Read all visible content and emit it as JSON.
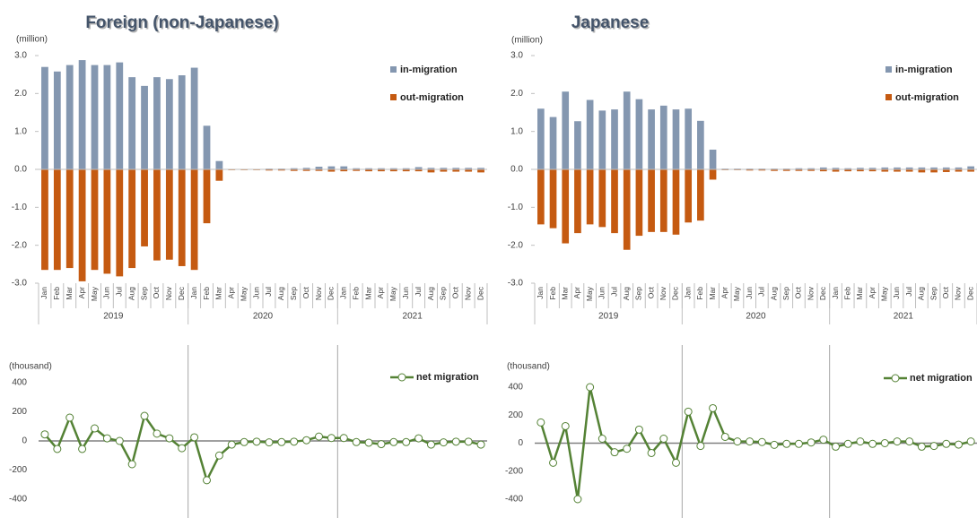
{
  "chart_data": [
    {
      "type": "bar",
      "title": "Foreign (non-Japanese)",
      "y_label": "(million)",
      "categories": [
        "Jan",
        "Feb",
        "Mar",
        "Apr",
        "May",
        "Jun",
        "Jul",
        "Aug",
        "Sep",
        "Oct",
        "Nov",
        "Dec",
        "Jan",
        "Feb",
        "Mar",
        "Apr",
        "May",
        "Jun",
        "Jul",
        "Aug",
        "Sep",
        "Oct",
        "Nov",
        "Dec",
        "Jan",
        "Feb",
        "Mar",
        "Apr",
        "May",
        "Jun",
        "Jul",
        "Aug",
        "Sep",
        "Oct",
        "Nov",
        "Dec"
      ],
      "groups": [
        "2019",
        "2020",
        "2021"
      ],
      "series": [
        {
          "name": "in-migration",
          "color": "#8497b0",
          "values": [
            2.7,
            2.58,
            2.75,
            2.88,
            2.75,
            2.75,
            2.82,
            2.43,
            2.2,
            2.43,
            2.38,
            2.48,
            2.68,
            1.15,
            0.22,
            0.01,
            0.01,
            0.01,
            0.02,
            0.02,
            0.03,
            0.04,
            0.07,
            0.08,
            0.08,
            0.03,
            0.03,
            0.03,
            0.03,
            0.03,
            0.06,
            0.04,
            0.04,
            0.04,
            0.04,
            0.04
          ]
        },
        {
          "name": "out-migration",
          "color": "#c55a11",
          "values": [
            -2.65,
            -2.65,
            -2.6,
            -2.95,
            -2.65,
            -2.75,
            -2.82,
            -2.6,
            -2.03,
            -2.4,
            -2.38,
            -2.55,
            -2.65,
            -1.42,
            -0.3,
            -0.02,
            -0.02,
            -0.02,
            -0.03,
            -0.03,
            -0.04,
            -0.04,
            -0.04,
            -0.06,
            -0.05,
            -0.04,
            -0.05,
            -0.05,
            -0.05,
            -0.05,
            -0.05,
            -0.08,
            -0.06,
            -0.06,
            -0.06,
            -0.08
          ]
        }
      ],
      "ylim": [
        -3,
        3
      ],
      "yticks": [
        {
          "value": 3,
          "label": "3.0"
        },
        {
          "value": 2,
          "label": "2.0"
        },
        {
          "value": 1,
          "label": "1.0"
        },
        {
          "value": 0,
          "label": "0.0"
        },
        {
          "value": -1,
          "label": "-1.0"
        },
        {
          "value": -2,
          "label": "-2.0"
        },
        {
          "value": -3,
          "label": "-3.0"
        }
      ]
    },
    {
      "type": "line",
      "y_label": "(thousand)",
      "series": [
        {
          "name": "net migration",
          "color": "#548235",
          "values": [
            45,
            -55,
            160,
            -55,
            86,
            18,
            0,
            -160,
            172,
            50,
            18,
            -50,
            25,
            -270,
            -100,
            -25,
            -8,
            -5,
            -10,
            -8,
            -5,
            5,
            30,
            20,
            20,
            -8,
            -12,
            -22,
            -8,
            -8,
            18,
            -25,
            -10,
            -5,
            -5,
            -25
          ]
        }
      ],
      "ylim": [
        -400,
        400
      ],
      "yticks": [
        400,
        200,
        0,
        -200,
        -400
      ]
    },
    {
      "type": "bar",
      "title": "Japanese",
      "y_label": "(million)",
      "categories": [
        "Jan",
        "Feb",
        "Mar",
        "Apr",
        "May",
        "Jun",
        "Jul",
        "Aug",
        "Sep",
        "Oct",
        "Nov",
        "Dec",
        "Jan",
        "Feb",
        "Mar",
        "Apr",
        "May",
        "Jun",
        "Jul",
        "Aug",
        "Sep",
        "Oct",
        "Nov",
        "Dec",
        "Jan",
        "Feb",
        "Mar",
        "Apr",
        "May",
        "Jun",
        "Jul",
        "Aug",
        "Sep",
        "Oct",
        "Nov",
        "Dec"
      ],
      "groups": [
        "2019",
        "2020",
        "2021"
      ],
      "series": [
        {
          "name": "in-migration",
          "color": "#8497b0",
          "values": [
            1.6,
            1.38,
            2.05,
            1.27,
            1.83,
            1.55,
            1.58,
            2.05,
            1.85,
            1.58,
            1.68,
            1.58,
            1.6,
            1.28,
            0.52,
            0.02,
            0.02,
            0.02,
            0.02,
            0.02,
            0.02,
            0.03,
            0.03,
            0.05,
            0.04,
            0.03,
            0.04,
            0.04,
            0.05,
            0.05,
            0.05,
            0.05,
            0.05,
            0.05,
            0.05,
            0.08
          ]
        },
        {
          "name": "out-migration",
          "color": "#c55a11",
          "values": [
            -1.45,
            -1.55,
            -1.95,
            -1.68,
            -1.45,
            -1.52,
            -1.68,
            -2.12,
            -1.75,
            -1.65,
            -1.65,
            -1.72,
            -1.4,
            -1.35,
            -0.27,
            -0.02,
            -0.02,
            -0.03,
            -0.03,
            -0.04,
            -0.04,
            -0.04,
            -0.04,
            -0.05,
            -0.06,
            -0.05,
            -0.05,
            -0.05,
            -0.06,
            -0.06,
            -0.06,
            -0.08,
            -0.08,
            -0.07,
            -0.06,
            -0.06
          ]
        }
      ],
      "ylim": [
        -3,
        3
      ],
      "yticks": [
        {
          "value": 3,
          "label": "3.0"
        },
        {
          "value": 2,
          "label": "2.0"
        },
        {
          "value": 1,
          "label": "1.0"
        },
        {
          "value": 0,
          "label": "0.0"
        },
        {
          "value": -1,
          "label": "-1.0"
        },
        {
          "value": -2,
          "label": "-2.0"
        },
        {
          "value": -3,
          "label": "-3.0"
        }
      ]
    },
    {
      "type": "line",
      "y_label": "(thousand)",
      "series": [
        {
          "name": "net migration",
          "color": "#548235",
          "values": [
            148,
            -140,
            122,
            -400,
            400,
            32,
            -65,
            -40,
            97,
            -70,
            32,
            -140,
            225,
            -20,
            250,
            45,
            12,
            12,
            8,
            -12,
            -5,
            -5,
            5,
            25,
            -25,
            -5,
            12,
            -5,
            0,
            12,
            12,
            -25,
            -20,
            -5,
            -10,
            12
          ]
        }
      ],
      "ylim": [
        -400,
        400
      ],
      "yticks": [
        400,
        200,
        0,
        -200,
        -400
      ]
    }
  ]
}
